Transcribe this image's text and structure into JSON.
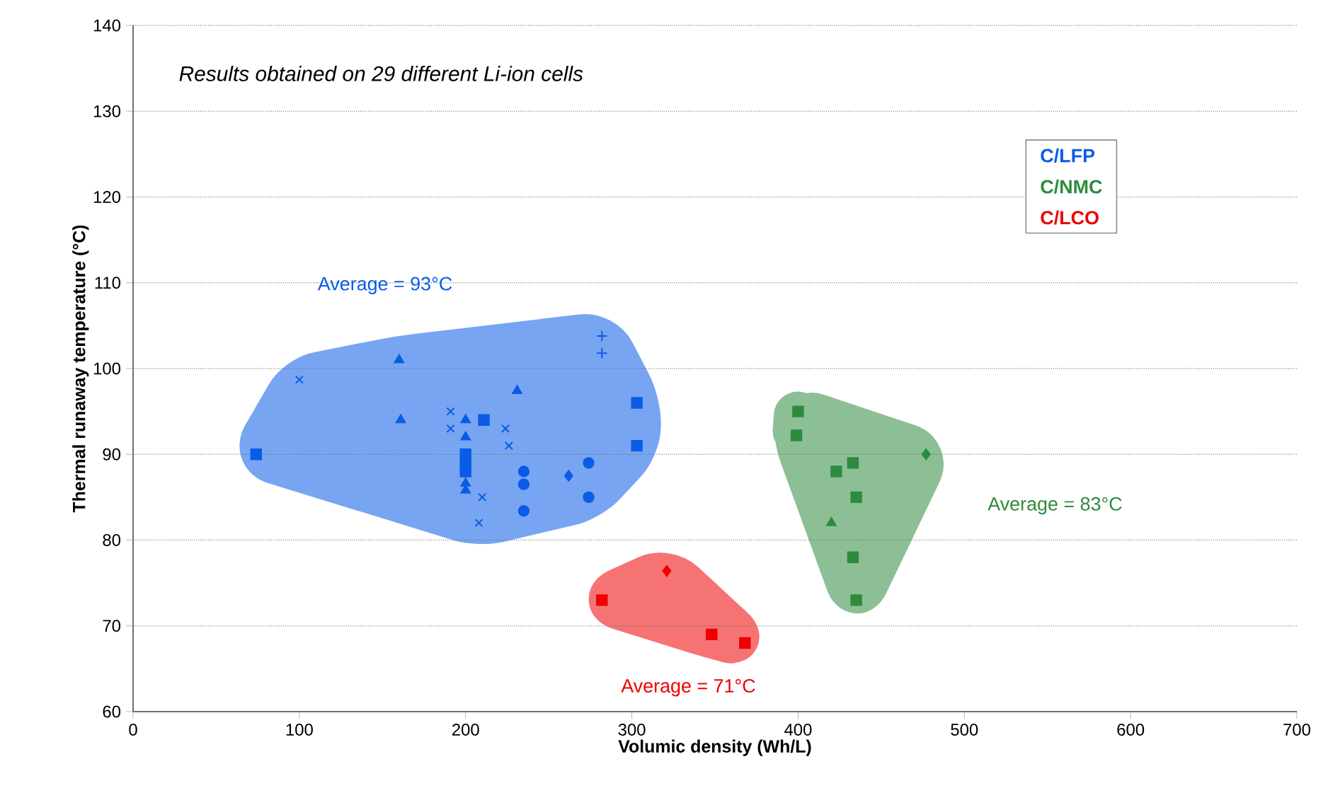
{
  "chart_data": {
    "type": "scatter",
    "title": "Results obtained on 29 different Li-ion cells",
    "xlabel": "Volumic density (Wh/L)",
    "ylabel": "Thermal runaway temperature (°C)",
    "xlim": [
      0,
      700
    ],
    "xticks": [
      0,
      100,
      200,
      300,
      400,
      500,
      600,
      700
    ],
    "ylim": [
      60,
      140
    ],
    "yticks": [
      60,
      70,
      80,
      90,
      100,
      110,
      120,
      130,
      140
    ],
    "grid": "y",
    "legend": "top right",
    "annotations": [
      "Average = 93°C",
      "Average = 83°C",
      "Average = 71°C"
    ],
    "series": [
      {
        "name": "C/LFP",
        "color": "#0a5ce6",
        "marker": "square",
        "x": [
          74,
          200,
          200,
          200,
          211,
          303,
          303
        ],
        "values": [
          90,
          90,
          89,
          88,
          94,
          96,
          91
        ]
      },
      {
        "color": "#0a5ce6",
        "marker": "triangle",
        "x": [
          160,
          161,
          200,
          200,
          200,
          200,
          231
        ],
        "values": [
          101,
          94,
          94,
          92,
          86.6,
          85.8,
          97.4
        ]
      },
      {
        "color": "#0a5ce6",
        "marker": "circle",
        "x": [
          235,
          235,
          235,
          274,
          274
        ],
        "values": [
          88,
          86.5,
          83.4,
          89,
          85
        ]
      },
      {
        "color": "#0a5ce6",
        "marker": "diamond",
        "x": [
          262
        ],
        "values": [
          87.5
        ]
      },
      {
        "color": "#0a5ce6",
        "marker": "cross",
        "x": [
          100,
          191,
          191,
          224,
          226,
          210,
          208
        ],
        "values": [
          98.7,
          95,
          93,
          93,
          91,
          85,
          82
        ]
      },
      {
        "color": "#0a5ce6",
        "marker": "plus",
        "x": [
          282,
          282
        ],
        "values": [
          103.8,
          101.8
        ]
      },
      {
        "name": "C/NMC",
        "color": "#2e8b3e",
        "marker": "square",
        "x": [
          399,
          433,
          433,
          400,
          423,
          435,
          435
        ],
        "values": [
          92.2,
          89,
          78,
          95,
          88,
          85,
          73
        ]
      },
      {
        "color": "#2e8b3e",
        "marker": "diamond",
        "x": [
          477
        ],
        "values": [
          90
        ]
      },
      {
        "color": "#2e8b3e",
        "marker": "triangle",
        "x": [
          420
        ],
        "values": [
          82
        ]
      },
      {
        "name": "C/LCO",
        "color": "#ee0000",
        "marker": "square",
        "x": [
          282,
          348,
          368
        ],
        "values": [
          73,
          69,
          68
        ]
      },
      {
        "color": "#ee0000",
        "marker": "diamond",
        "x": [
          321
        ],
        "values": [
          76.4
        ]
      }
    ]
  }
}
